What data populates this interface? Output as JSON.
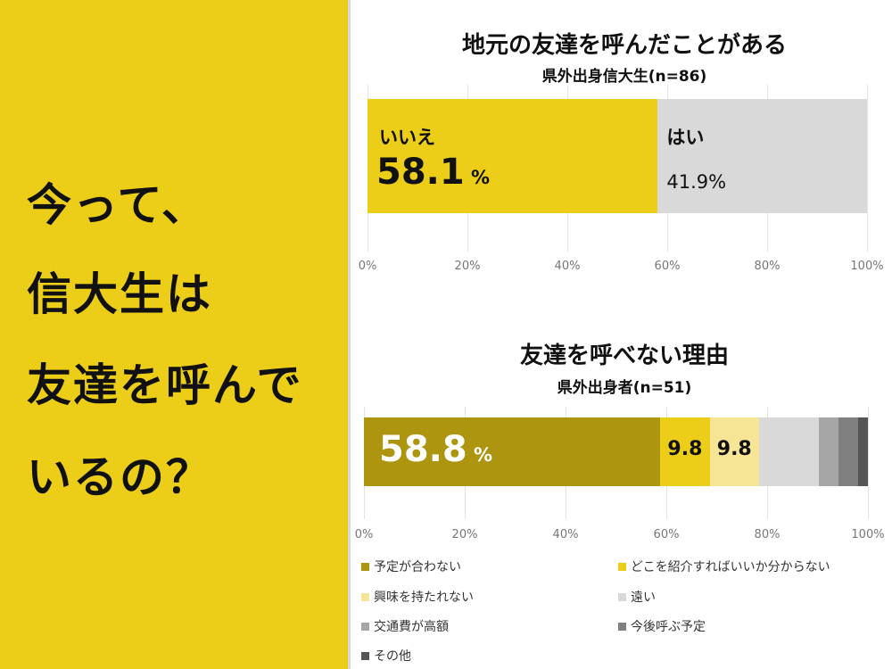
{
  "left": {
    "lines": [
      "今って、",
      "信大生は",
      "友達を呼んで",
      "いるの？"
    ],
    "bg": "#ecce19"
  },
  "chart_data": [
    {
      "type": "bar",
      "stacked": true,
      "orientation": "horizontal",
      "title": "地元の友達を呼んだことがある",
      "subtitle": "県外出身信大生(n=86)",
      "series": [
        {
          "name": "いいえ",
          "value": 58.1,
          "color": "#ecce19",
          "label_value": "58.1",
          "label_unit": "%"
        },
        {
          "name": "はい",
          "value": 41.9,
          "color": "#d9d9d9",
          "label_value": "41.9%"
        }
      ],
      "xlim": [
        0,
        100
      ],
      "ticks": [
        "0%",
        "20%",
        "40%",
        "60%",
        "80%",
        "100%"
      ],
      "grid": true
    },
    {
      "type": "bar",
      "stacked": true,
      "orientation": "horizontal",
      "title": "友達を呼べない理由",
      "subtitle": "県外出身者(n=51)",
      "series": [
        {
          "name": "予定が合わない",
          "value": 58.8,
          "color": "#ad9510",
          "label_value": "58.8",
          "label_unit": "%"
        },
        {
          "name": "どこを紹介すればいいか分からない",
          "value": 9.8,
          "color": "#ecce19",
          "label_value": "9.8"
        },
        {
          "name": "興味を持たれない",
          "value": 9.8,
          "color": "#f5e594",
          "label_value": "9.8"
        },
        {
          "name": "遠い",
          "value": 11.8,
          "color": "#d9d9d9"
        },
        {
          "name": "交通費が高額",
          "value": 3.9,
          "color": "#a6a6a6"
        },
        {
          "name": "今後呼ぶ予定",
          "value": 3.9,
          "color": "#808080"
        },
        {
          "name": "その他",
          "value": 2.0,
          "color": "#555555"
        }
      ],
      "xlim": [
        0,
        100
      ],
      "ticks": [
        "0%",
        "20%",
        "40%",
        "60%",
        "80%",
        "100%"
      ],
      "grid": true,
      "legend": "bottom"
    }
  ]
}
